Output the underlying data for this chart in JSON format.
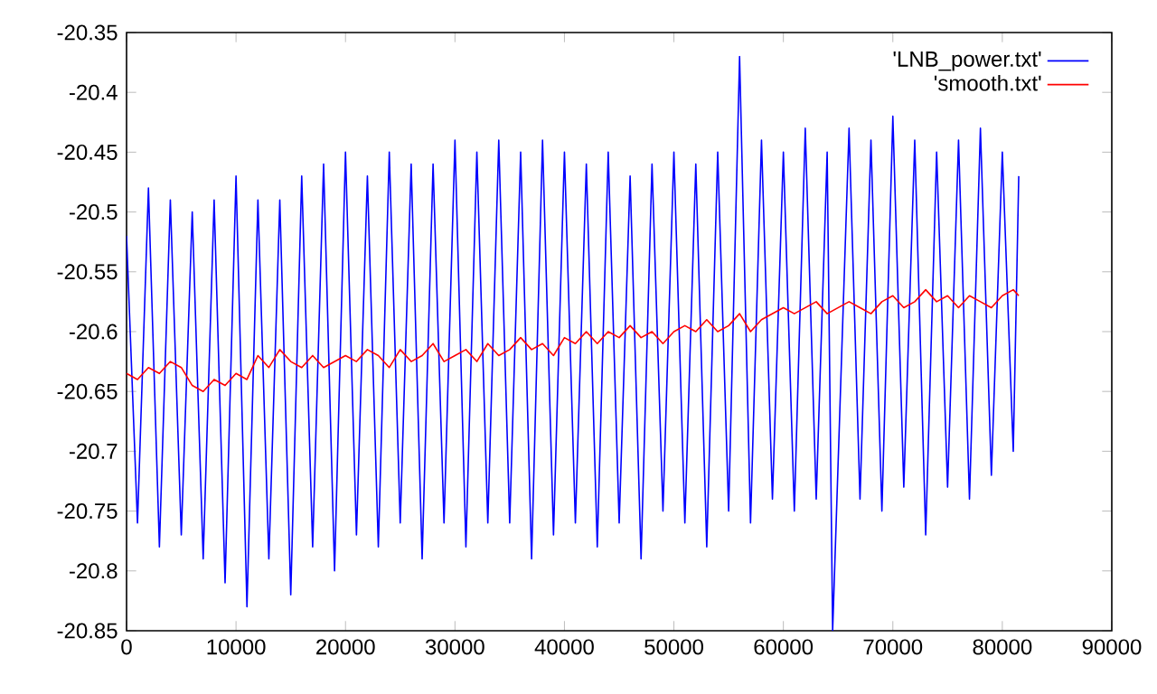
{
  "chart_data": {
    "type": "line",
    "xlim": [
      0,
      90000
    ],
    "ylim": [
      -20.85,
      -20.35
    ],
    "xticks": [
      0,
      10000,
      20000,
      30000,
      40000,
      50000,
      60000,
      70000,
      80000,
      90000
    ],
    "yticks": [
      -20.85,
      -20.8,
      -20.75,
      -20.7,
      -20.65,
      -20.6,
      -20.55,
      -20.5,
      -20.45,
      -20.4,
      -20.35
    ],
    "legend": "top right",
    "series": [
      {
        "name": "'LNB_power.txt'",
        "color": "#0000ff",
        "x": [
          0,
          1000,
          2000,
          3000,
          4000,
          5000,
          6000,
          7000,
          8000,
          9000,
          10000,
          11000,
          12000,
          13000,
          14000,
          15000,
          16000,
          17000,
          18000,
          19000,
          20000,
          21000,
          22000,
          23000,
          24000,
          25000,
          26000,
          27000,
          28000,
          29000,
          30000,
          31000,
          32000,
          33000,
          34000,
          35000,
          36000,
          37000,
          38000,
          39000,
          40000,
          41000,
          42000,
          43000,
          44000,
          45000,
          46000,
          47000,
          48000,
          49000,
          50000,
          51000,
          52000,
          53000,
          54000,
          55000,
          56000,
          57000,
          58000,
          59000,
          60000,
          61000,
          62000,
          63000,
          64000,
          64500,
          66000,
          67000,
          68000,
          69000,
          70000,
          71000,
          72000,
          73000,
          74000,
          75000,
          76000,
          77000,
          78000,
          79000,
          80000,
          81000,
          81500
        ],
        "values": [
          -20.52,
          -20.76,
          -20.48,
          -20.78,
          -20.49,
          -20.77,
          -20.5,
          -20.79,
          -20.49,
          -20.81,
          -20.47,
          -20.83,
          -20.49,
          -20.79,
          -20.49,
          -20.82,
          -20.47,
          -20.78,
          -20.46,
          -20.8,
          -20.45,
          -20.77,
          -20.47,
          -20.78,
          -20.45,
          -20.76,
          -20.46,
          -20.79,
          -20.46,
          -20.76,
          -20.44,
          -20.78,
          -20.45,
          -20.76,
          -20.44,
          -20.76,
          -20.45,
          -20.79,
          -20.44,
          -20.77,
          -20.45,
          -20.76,
          -20.46,
          -20.78,
          -20.45,
          -20.76,
          -20.47,
          -20.79,
          -20.46,
          -20.75,
          -20.45,
          -20.76,
          -20.46,
          -20.78,
          -20.45,
          -20.75,
          -20.37,
          -20.76,
          -20.44,
          -20.74,
          -20.45,
          -20.75,
          -20.43,
          -20.74,
          -20.45,
          -20.85,
          -20.43,
          -20.74,
          -20.44,
          -20.75,
          -20.42,
          -20.73,
          -20.44,
          -20.77,
          -20.45,
          -20.73,
          -20.44,
          -20.74,
          -20.43,
          -20.72,
          -20.45,
          -20.7,
          -20.47
        ]
      },
      {
        "name": "'smooth.txt'",
        "color": "#ff0000",
        "x": [
          0,
          1000,
          2000,
          3000,
          4000,
          5000,
          6000,
          7000,
          8000,
          9000,
          10000,
          11000,
          12000,
          13000,
          14000,
          15000,
          16000,
          17000,
          18000,
          19000,
          20000,
          21000,
          22000,
          23000,
          24000,
          25000,
          26000,
          27000,
          28000,
          29000,
          30000,
          31000,
          32000,
          33000,
          34000,
          35000,
          36000,
          37000,
          38000,
          39000,
          40000,
          41000,
          42000,
          43000,
          44000,
          45000,
          46000,
          47000,
          48000,
          49000,
          50000,
          51000,
          52000,
          53000,
          54000,
          55000,
          56000,
          57000,
          58000,
          59000,
          60000,
          61000,
          62000,
          63000,
          64000,
          65000,
          66000,
          67000,
          68000,
          69000,
          70000,
          71000,
          72000,
          73000,
          74000,
          75000,
          76000,
          77000,
          78000,
          79000,
          80000,
          81000,
          81500
        ],
        "values": [
          -20.635,
          -20.64,
          -20.63,
          -20.635,
          -20.625,
          -20.63,
          -20.645,
          -20.65,
          -20.64,
          -20.645,
          -20.635,
          -20.64,
          -20.62,
          -20.63,
          -20.615,
          -20.625,
          -20.63,
          -20.62,
          -20.63,
          -20.625,
          -20.62,
          -20.625,
          -20.615,
          -20.62,
          -20.63,
          -20.615,
          -20.625,
          -20.62,
          -20.61,
          -20.625,
          -20.62,
          -20.615,
          -20.625,
          -20.61,
          -20.62,
          -20.615,
          -20.605,
          -20.615,
          -20.61,
          -20.62,
          -20.605,
          -20.61,
          -20.6,
          -20.61,
          -20.6,
          -20.605,
          -20.595,
          -20.605,
          -20.6,
          -20.61,
          -20.6,
          -20.595,
          -20.6,
          -20.59,
          -20.6,
          -20.595,
          -20.585,
          -20.6,
          -20.59,
          -20.585,
          -20.58,
          -20.585,
          -20.58,
          -20.575,
          -20.585,
          -20.58,
          -20.575,
          -20.58,
          -20.585,
          -20.575,
          -20.57,
          -20.58,
          -20.575,
          -20.565,
          -20.575,
          -20.57,
          -20.58,
          -20.57,
          -20.575,
          -20.58,
          -20.57,
          -20.565,
          -20.57
        ]
      }
    ]
  }
}
